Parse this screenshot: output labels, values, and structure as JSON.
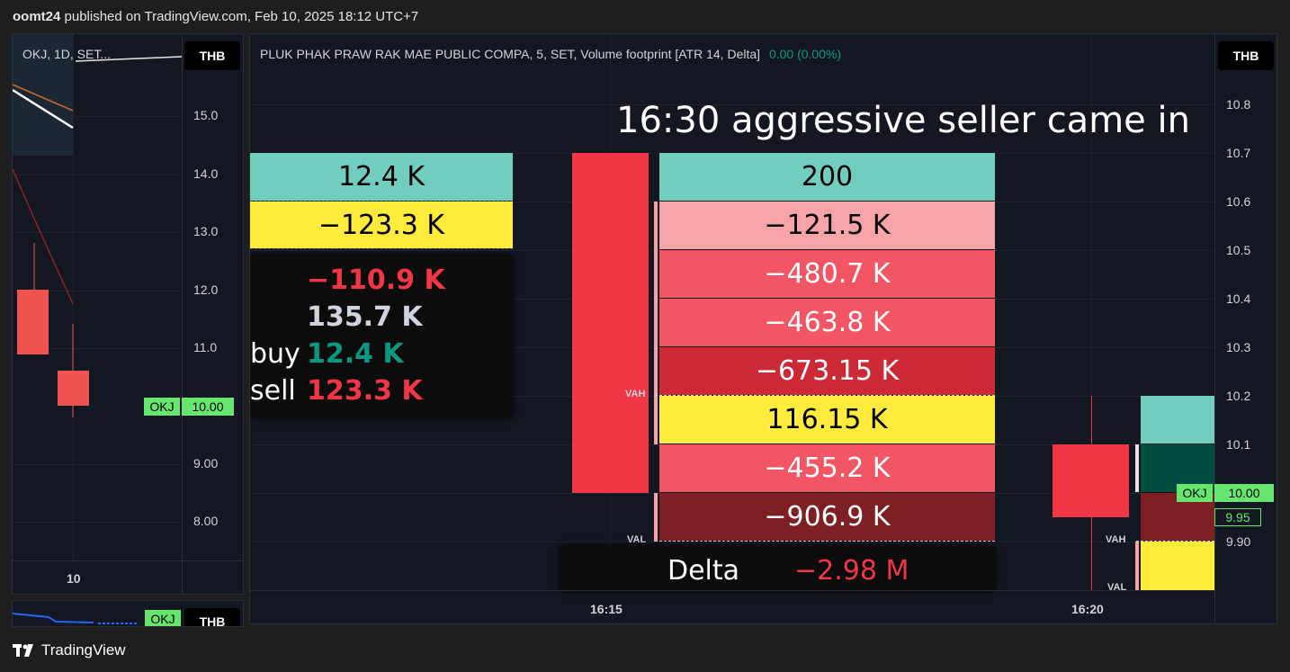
{
  "header": {
    "user": "oomt24",
    "text": " published on TradingView.com, Feb 10, 2025 18:12 UTC+7"
  },
  "left_chart": {
    "legend": "OKJ, 1D, SET...",
    "currency": "THB",
    "ticks": [
      "15.0",
      "14.0",
      "13.0",
      "12.0",
      "11.0",
      "9.00",
      "8.00"
    ],
    "price_symbol": "OKJ",
    "price_value": "10.00",
    "x_tick": "10"
  },
  "mini_panel": {
    "symbol": "OKJ",
    "currency": "THB"
  },
  "main_chart": {
    "legend": "PLUK PHAK PRAW RAK MAE PUBLIC COMPA, 5, SET, Volume footprint [ATR 14, Delta]",
    "legend_value": "0.00 (0.00%)",
    "currency": "THB",
    "annotation": "16:30 aggressive seller came in",
    "ticks": [
      "10.8",
      "10.7",
      "10.6",
      "10.5",
      "10.4",
      "10.3",
      "10.2",
      "10.1",
      "9.90"
    ],
    "price_symbol": "OKJ",
    "price_value": "10.00",
    "price_prev": "9.95",
    "x_ticks": [
      "16:15",
      "16:20"
    ],
    "left_cells": [
      "12.4 K",
      "−123.3 K"
    ],
    "footprint_cells": [
      "200",
      "−121.5 K",
      "−480.7 K",
      "−463.8 K",
      "−673.15 K",
      "116.15 K",
      "−455.2 K",
      "−906.9 K"
    ],
    "vah": "VAH",
    "val": "VAL",
    "tooltip": {
      "delta": "−110.9 K",
      "volume": "135.7 K",
      "buy_label": "buy",
      "buy_value": "12.4 K",
      "sell_label": "sell",
      "sell_value": "123.3 K"
    },
    "delta_label": "Delta",
    "delta_value": "−2.98 M"
  },
  "colors": {
    "teal": "#71cebf",
    "yellow": "#ffeb3b",
    "red": "#f23645",
    "light_red": "#f7a4a8",
    "mid_red": "#f25563",
    "dark_red": "#cc2936",
    "darker_red": "#7e1f24",
    "dark_green": "#004d40"
  },
  "footer": {
    "brand": "TradingView"
  }
}
